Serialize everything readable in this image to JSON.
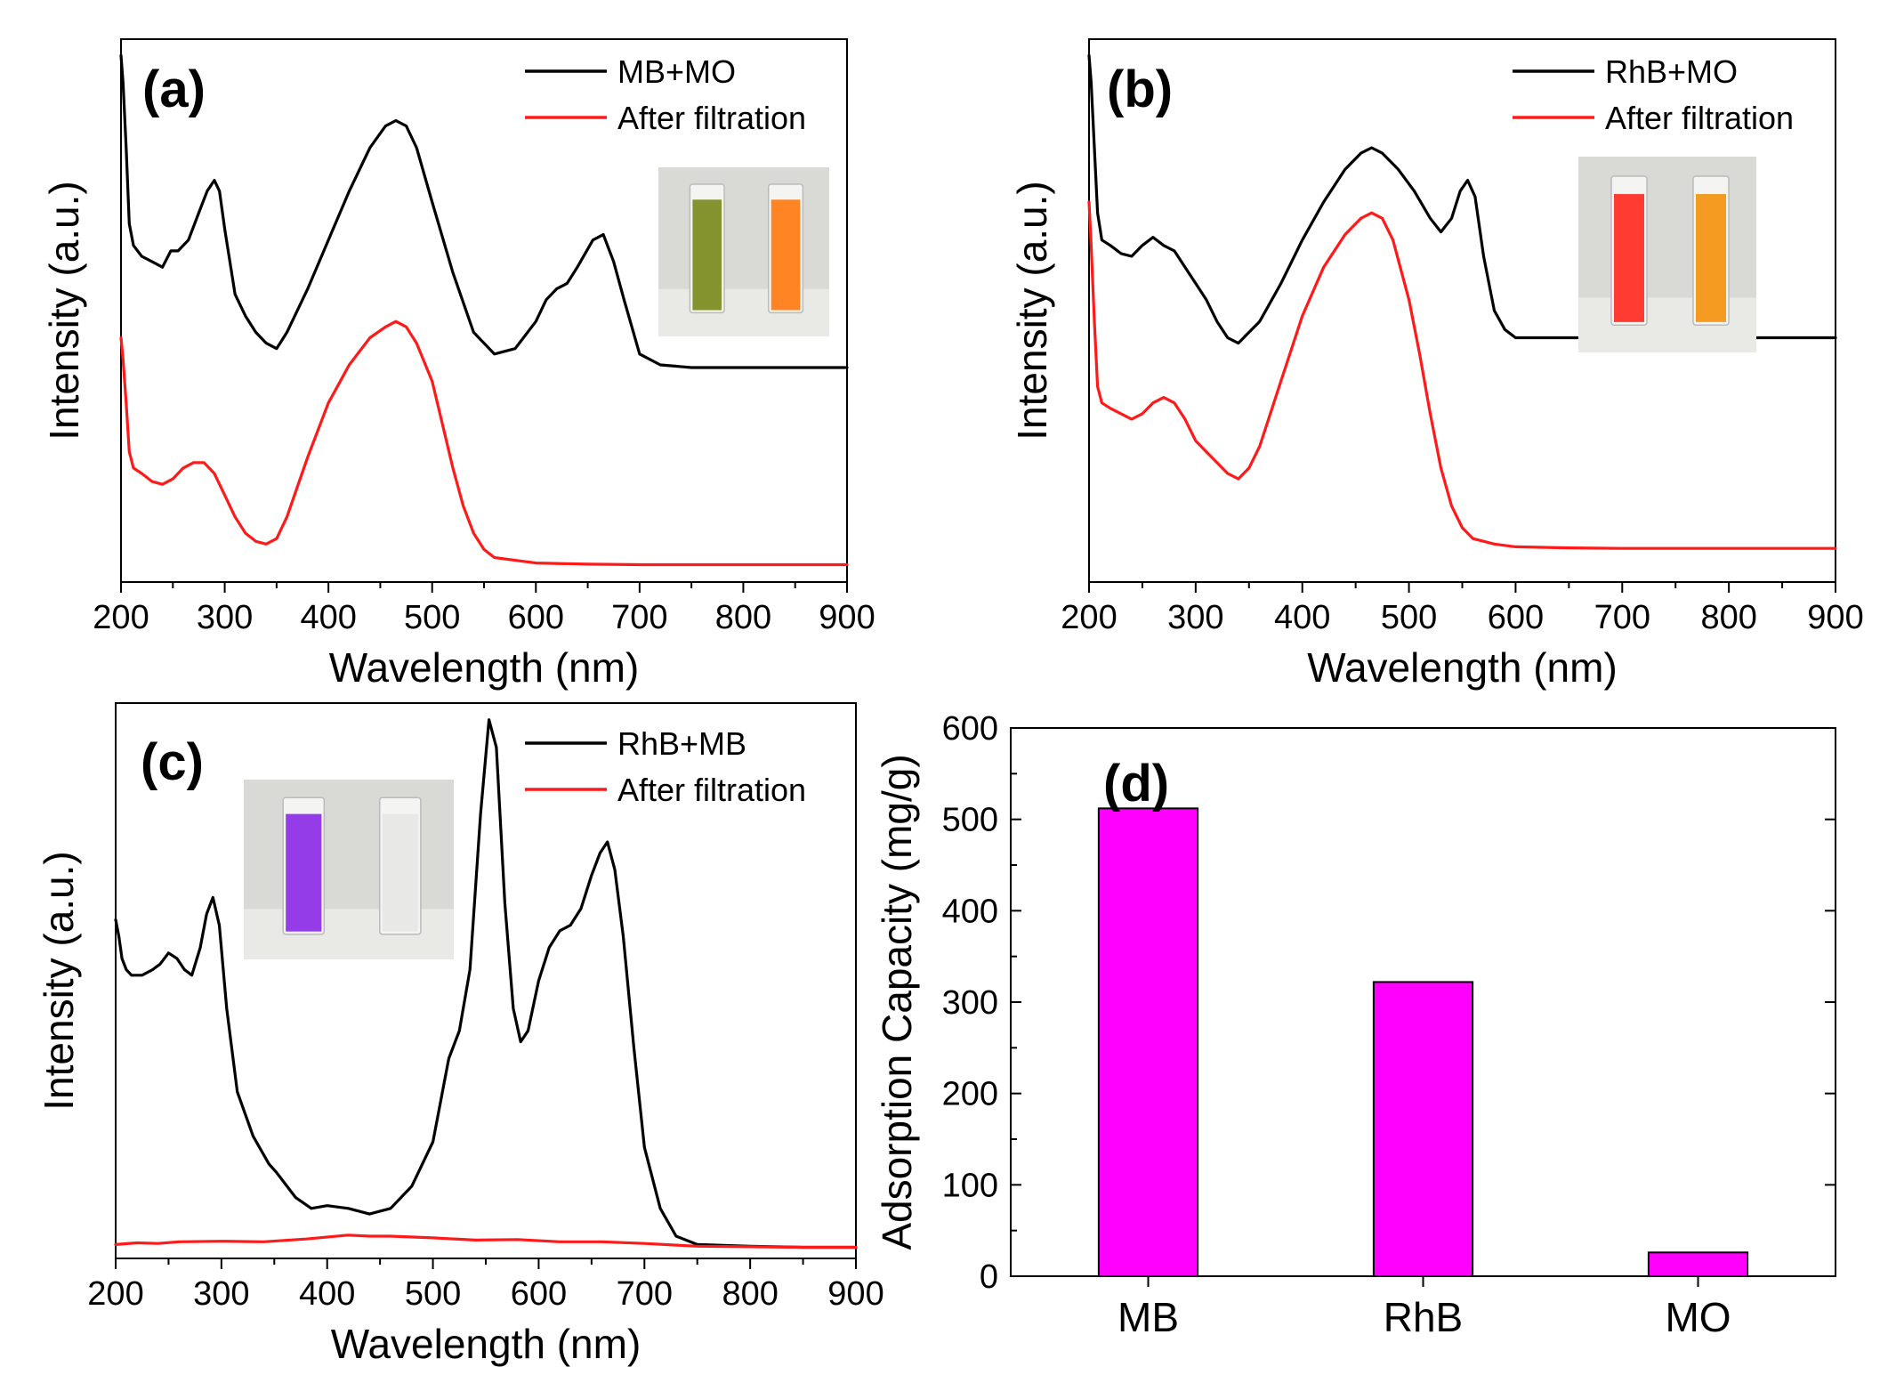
{
  "figure": {
    "description_colors": {
      "black": "#000000",
      "red": "#ff1a1a",
      "bar": "#ff00ff"
    }
  },
  "chart_data": [
    {
      "id": "a",
      "type": "line",
      "panel_label": "(a)",
      "xlabel": "Wavelength (nm)",
      "ylabel": "Intensity (a.u.)",
      "xlim": [
        200,
        900
      ],
      "ylim": [
        0,
        1
      ],
      "xticks": [
        200,
        300,
        400,
        500,
        600,
        700,
        800,
        900
      ],
      "yticks_shown": false,
      "series": [
        {
          "name": "MB+MO",
          "color": "#000000",
          "x": [
            200,
            202,
            205,
            208,
            212,
            220,
            230,
            240,
            248,
            255,
            265,
            275,
            283,
            290,
            295,
            300,
            310,
            320,
            330,
            340,
            350,
            360,
            380,
            400,
            420,
            440,
            455,
            465,
            475,
            485,
            500,
            520,
            540,
            560,
            580,
            600,
            610,
            620,
            630,
            640,
            655,
            665,
            675,
            685,
            700,
            720,
            750,
            800,
            850,
            900
          ],
          "y": [
            0.97,
            0.92,
            0.8,
            0.66,
            0.62,
            0.6,
            0.59,
            0.58,
            0.61,
            0.61,
            0.63,
            0.68,
            0.72,
            0.74,
            0.72,
            0.65,
            0.53,
            0.49,
            0.46,
            0.44,
            0.43,
            0.46,
            0.54,
            0.63,
            0.72,
            0.8,
            0.84,
            0.85,
            0.84,
            0.8,
            0.7,
            0.57,
            0.46,
            0.42,
            0.43,
            0.48,
            0.52,
            0.54,
            0.55,
            0.58,
            0.63,
            0.64,
            0.59,
            0.52,
            0.42,
            0.4,
            0.395,
            0.395,
            0.395,
            0.395
          ]
        },
        {
          "name": "After filtration",
          "color": "#ff1a1a",
          "x": [
            200,
            202,
            205,
            208,
            212,
            220,
            230,
            240,
            250,
            260,
            270,
            280,
            290,
            300,
            310,
            320,
            330,
            340,
            350,
            360,
            380,
            400,
            420,
            440,
            455,
            465,
            475,
            485,
            500,
            510,
            520,
            530,
            540,
            550,
            560,
            580,
            600,
            650,
            700,
            750,
            800,
            900
          ],
          "y": [
            0.45,
            0.41,
            0.33,
            0.24,
            0.21,
            0.2,
            0.185,
            0.18,
            0.19,
            0.21,
            0.22,
            0.22,
            0.2,
            0.16,
            0.12,
            0.09,
            0.075,
            0.07,
            0.08,
            0.12,
            0.23,
            0.33,
            0.4,
            0.45,
            0.47,
            0.48,
            0.47,
            0.44,
            0.37,
            0.29,
            0.21,
            0.14,
            0.09,
            0.06,
            0.045,
            0.04,
            0.035,
            0.033,
            0.032,
            0.032,
            0.032,
            0.032
          ]
        }
      ],
      "inset": {
        "cuvettes": [
          "#7a8a1c",
          "#ff7a12"
        ]
      }
    },
    {
      "id": "b",
      "type": "line",
      "panel_label": "(b)",
      "xlabel": "Wavelength (nm)",
      "ylabel": "Intensity (a.u.)",
      "xlim": [
        200,
        900
      ],
      "ylim": [
        0,
        1
      ],
      "xticks": [
        200,
        300,
        400,
        500,
        600,
        700,
        800,
        900
      ],
      "yticks_shown": false,
      "series": [
        {
          "name": "RhB+MO",
          "color": "#000000",
          "x": [
            200,
            202,
            205,
            208,
            212,
            220,
            230,
            240,
            250,
            260,
            270,
            280,
            290,
            300,
            310,
            320,
            330,
            340,
            350,
            360,
            380,
            400,
            420,
            440,
            455,
            465,
            475,
            490,
            505,
            520,
            530,
            540,
            548,
            555,
            562,
            570,
            580,
            590,
            600,
            650,
            700,
            800,
            900
          ],
          "y": [
            0.97,
            0.92,
            0.8,
            0.68,
            0.63,
            0.62,
            0.605,
            0.6,
            0.62,
            0.635,
            0.62,
            0.61,
            0.58,
            0.55,
            0.52,
            0.48,
            0.45,
            0.44,
            0.46,
            0.48,
            0.55,
            0.63,
            0.7,
            0.76,
            0.79,
            0.8,
            0.79,
            0.76,
            0.72,
            0.67,
            0.645,
            0.67,
            0.72,
            0.74,
            0.71,
            0.6,
            0.5,
            0.465,
            0.45,
            0.45,
            0.45,
            0.45,
            0.45
          ]
        },
        {
          "name": "After filtration",
          "color": "#ff1a1a",
          "x": [
            200,
            202,
            205,
            208,
            212,
            220,
            230,
            240,
            250,
            260,
            270,
            280,
            290,
            300,
            310,
            320,
            330,
            340,
            350,
            360,
            380,
            400,
            420,
            440,
            455,
            465,
            475,
            485,
            500,
            510,
            520,
            530,
            540,
            550,
            560,
            580,
            600,
            650,
            700,
            800,
            900
          ],
          "y": [
            0.7,
            0.62,
            0.48,
            0.36,
            0.33,
            0.32,
            0.31,
            0.3,
            0.31,
            0.33,
            0.34,
            0.33,
            0.3,
            0.26,
            0.24,
            0.22,
            0.2,
            0.19,
            0.21,
            0.25,
            0.37,
            0.49,
            0.58,
            0.64,
            0.67,
            0.68,
            0.67,
            0.63,
            0.52,
            0.42,
            0.31,
            0.21,
            0.14,
            0.1,
            0.08,
            0.07,
            0.065,
            0.063,
            0.062,
            0.062,
            0.062
          ]
        }
      ],
      "inset": {
        "cuvettes": [
          "#ff2a22",
          "#f49310"
        ]
      }
    },
    {
      "id": "c",
      "type": "line",
      "panel_label": "(c)",
      "xlabel": "Wavelength (nm)",
      "ylabel": "Intensity (a.u.)",
      "xlim": [
        200,
        900
      ],
      "ylim": [
        0,
        1
      ],
      "xticks": [
        200,
        300,
        400,
        500,
        600,
        700,
        800,
        900
      ],
      "yticks_shown": false,
      "series": [
        {
          "name": "RhB+MB",
          "color": "#000000",
          "x": [
            200,
            203,
            206,
            210,
            215,
            225,
            235,
            242,
            250,
            258,
            265,
            272,
            280,
            286,
            292,
            298,
            305,
            315,
            330,
            345,
            352,
            358,
            370,
            385,
            400,
            420,
            440,
            460,
            480,
            500,
            515,
            525,
            535,
            545,
            553,
            560,
            568,
            576,
            583,
            590,
            600,
            610,
            620,
            630,
            640,
            650,
            658,
            665,
            672,
            680,
            690,
            700,
            715,
            730,
            750,
            800,
            850,
            900
          ],
          "y": [
            0.61,
            0.58,
            0.54,
            0.52,
            0.51,
            0.51,
            0.52,
            0.53,
            0.55,
            0.54,
            0.52,
            0.51,
            0.56,
            0.62,
            0.65,
            0.6,
            0.45,
            0.3,
            0.22,
            0.17,
            0.155,
            0.14,
            0.11,
            0.09,
            0.095,
            0.09,
            0.08,
            0.09,
            0.13,
            0.21,
            0.36,
            0.41,
            0.52,
            0.8,
            0.97,
            0.92,
            0.64,
            0.45,
            0.39,
            0.41,
            0.5,
            0.56,
            0.59,
            0.6,
            0.63,
            0.69,
            0.73,
            0.75,
            0.7,
            0.58,
            0.38,
            0.2,
            0.09,
            0.04,
            0.025,
            0.022,
            0.02,
            0.02
          ]
        },
        {
          "name": "After filtration",
          "color": "#ff1a1a",
          "x": [
            200,
            220,
            240,
            260,
            300,
            340,
            380,
            420,
            440,
            460,
            500,
            540,
            580,
            620,
            660,
            700,
            750,
            800,
            850,
            900
          ],
          "y": [
            0.025,
            0.028,
            0.027,
            0.03,
            0.031,
            0.03,
            0.035,
            0.042,
            0.04,
            0.04,
            0.037,
            0.033,
            0.034,
            0.03,
            0.03,
            0.027,
            0.022,
            0.021,
            0.02,
            0.02
          ]
        }
      ],
      "inset": {
        "cuvettes": [
          "#8a2be6",
          "#e6e6e6"
        ]
      }
    },
    {
      "id": "d",
      "type": "bar",
      "panel_label": "(d)",
      "xlabel": "",
      "ylabel": "Adsorption Capacity (mg/g)",
      "categories": [
        "MB",
        "RhB",
        "MO"
      ],
      "values": [
        512,
        322,
        26
      ],
      "ylim": [
        0,
        600
      ],
      "yticks": [
        0,
        100,
        200,
        300,
        400,
        500,
        600
      ],
      "color": "#ff00ff"
    }
  ]
}
